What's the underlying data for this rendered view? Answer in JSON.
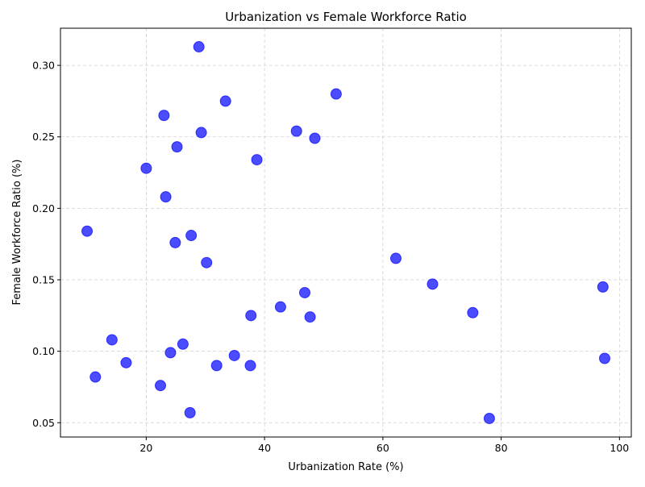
{
  "chart_data": {
    "type": "scatter",
    "title": "Urbanization vs Female Workforce Ratio",
    "xlabel": "Urbanization Rate (%)",
    "ylabel": "Female Workforce Ratio (%)",
    "xlim": [
      5.5,
      102
    ],
    "ylim": [
      0.04,
      0.326
    ],
    "xticks": [
      20,
      40,
      60,
      80,
      100
    ],
    "yticks": [
      0.05,
      0.1,
      0.15,
      0.2,
      0.25,
      0.3
    ],
    "xtick_labels": [
      "20",
      "40",
      "60",
      "80",
      "100"
    ],
    "ytick_labels": [
      "0.05",
      "0.10",
      "0.15",
      "0.20",
      "0.25",
      "0.30"
    ],
    "grid": true,
    "marker_color": "#0000ff",
    "marker_alpha": 0.7,
    "points": [
      {
        "x": 28.9,
        "y": 0.313
      },
      {
        "x": 33.4,
        "y": 0.275
      },
      {
        "x": 52.1,
        "y": 0.28
      },
      {
        "x": 23.0,
        "y": 0.265
      },
      {
        "x": 29.3,
        "y": 0.253
      },
      {
        "x": 45.4,
        "y": 0.254
      },
      {
        "x": 48.5,
        "y": 0.249
      },
      {
        "x": 25.2,
        "y": 0.243
      },
      {
        "x": 38.7,
        "y": 0.234
      },
      {
        "x": 20.0,
        "y": 0.228
      },
      {
        "x": 23.3,
        "y": 0.208
      },
      {
        "x": 10.0,
        "y": 0.184
      },
      {
        "x": 27.6,
        "y": 0.181
      },
      {
        "x": 24.9,
        "y": 0.176
      },
      {
        "x": 30.2,
        "y": 0.162
      },
      {
        "x": 62.2,
        "y": 0.165
      },
      {
        "x": 68.4,
        "y": 0.147
      },
      {
        "x": 97.2,
        "y": 0.145
      },
      {
        "x": 46.8,
        "y": 0.141
      },
      {
        "x": 42.7,
        "y": 0.131
      },
      {
        "x": 75.2,
        "y": 0.127
      },
      {
        "x": 37.7,
        "y": 0.125
      },
      {
        "x": 47.7,
        "y": 0.124
      },
      {
        "x": 14.2,
        "y": 0.108
      },
      {
        "x": 26.2,
        "y": 0.105
      },
      {
        "x": 24.1,
        "y": 0.099
      },
      {
        "x": 34.9,
        "y": 0.097
      },
      {
        "x": 97.5,
        "y": 0.095
      },
      {
        "x": 16.6,
        "y": 0.092
      },
      {
        "x": 31.9,
        "y": 0.09
      },
      {
        "x": 37.6,
        "y": 0.09
      },
      {
        "x": 11.4,
        "y": 0.082
      },
      {
        "x": 22.4,
        "y": 0.076
      },
      {
        "x": 27.4,
        "y": 0.057
      },
      {
        "x": 78.0,
        "y": 0.053
      }
    ]
  }
}
